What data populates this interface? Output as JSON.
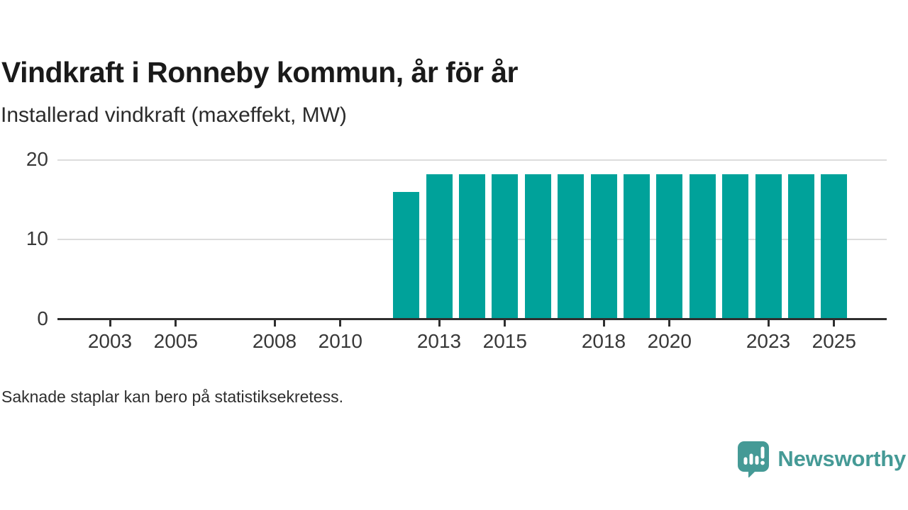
{
  "title": "Vindkraft i Ronneby kommun, år för år",
  "subtitle": "Installerad vindkraft (maxeffekt, MW)",
  "footnote": "Saknade staplar kan bero på statistiksekretess.",
  "branding": {
    "name": "Newsworthy",
    "icon": "newsworthy-speech-bubble-barchart-icon",
    "color": "#459a96"
  },
  "colors": {
    "bar": "#00a29a",
    "axis": "#2f2f2f",
    "gridline": "#dcdcdc",
    "title_text": "#1a1a1a",
    "tick_text": "#383838"
  },
  "chart_data": {
    "type": "bar",
    "title": "Vindkraft i Ronneby kommun, år för år",
    "subtitle": "Installerad vindkraft (maxeffekt, MW)",
    "xlabel": "",
    "ylabel": "Installerad vindkraft (maxeffekt, MW)",
    "unit": "MW",
    "series": [
      {
        "name": "Installerad vindkraft (maxeffekt, MW)",
        "points": [
          {
            "year": 2012,
            "value": 16
          },
          {
            "year": 2013,
            "value": 18.2
          },
          {
            "year": 2014,
            "value": 18.2
          },
          {
            "year": 2015,
            "value": 18.2
          },
          {
            "year": 2016,
            "value": 18.2
          },
          {
            "year": 2017,
            "value": 18.2
          },
          {
            "year": 2018,
            "value": 18.2
          },
          {
            "year": 2019,
            "value": 18.2
          },
          {
            "year": 2020,
            "value": 18.2
          },
          {
            "year": 2021,
            "value": 18.2
          },
          {
            "year": 2022,
            "value": 18.2
          },
          {
            "year": 2023,
            "value": 18.2
          },
          {
            "year": 2024,
            "value": 18.2
          },
          {
            "year": 2025,
            "value": 18.2
          }
        ]
      }
    ],
    "years_without_bars": [
      2002,
      2003,
      2004,
      2005,
      2006,
      2007,
      2008,
      2009,
      2010,
      2011
    ],
    "x_tick_years": [
      2003,
      2005,
      2008,
      2010,
      2013,
      2015,
      2018,
      2020,
      2023,
      2025
    ],
    "y_ticks": [
      0,
      10,
      20
    ],
    "ylim": [
      0,
      20
    ],
    "xlim_years": [
      2002,
      2026
    ],
    "grid": "horizontal-only",
    "legend": "none",
    "bar_color": "#00a29a"
  }
}
